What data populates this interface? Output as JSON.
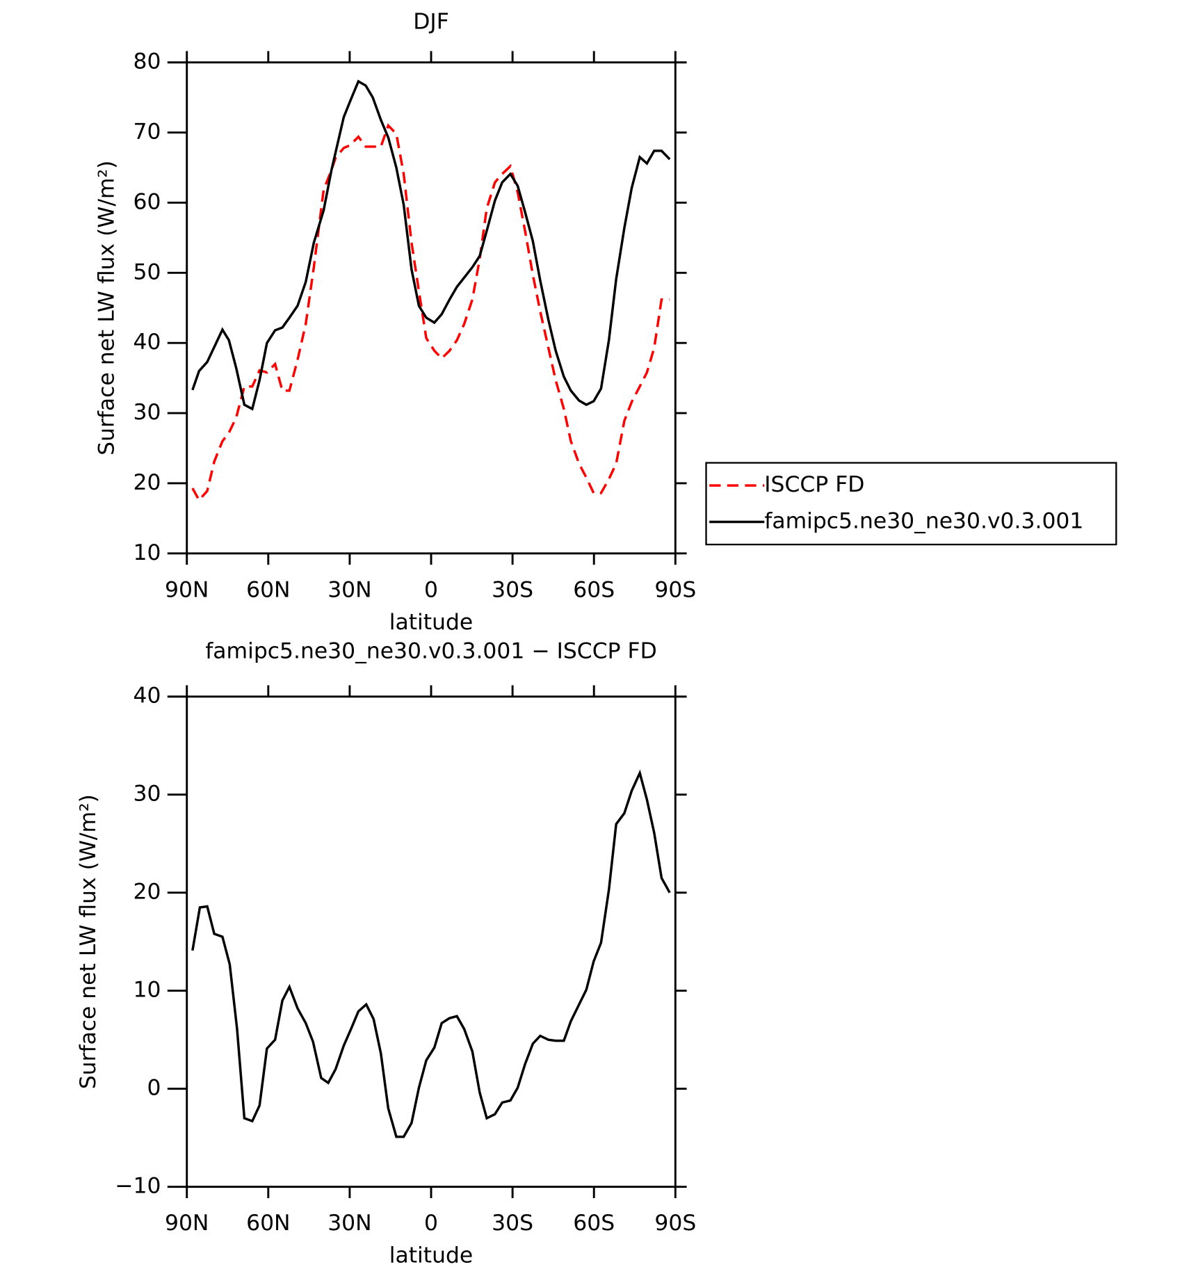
{
  "chart_data": [
    {
      "type": "line",
      "title": "DJF",
      "xlabel": "latitude",
      "ylabel": "Surface net LW flux (W/m²)",
      "xlim": [
        90,
        -90
      ],
      "xticks": [
        {
          "value": 90,
          "label": "90N"
        },
        {
          "value": 60,
          "label": "60N"
        },
        {
          "value": 30,
          "label": "30N"
        },
        0,
        {
          "value": -30,
          "label": "30S"
        },
        {
          "value": -60,
          "label": "60S"
        },
        {
          "value": -90,
          "label": "90S"
        }
      ],
      "ylim": [
        10,
        80
      ],
      "yticks": [
        10,
        20,
        30,
        40,
        50,
        60,
        70,
        80
      ],
      "legend": "right",
      "series": [
        {
          "name": "ISCCP FD",
          "color": "#ff0000",
          "line_style": "dashed",
          "x": [
            87.9,
            85.5,
            82.5,
            79.9,
            76.9,
            74.5,
            71.8,
            68.8,
            65.9,
            63.2,
            60.5,
            57.5,
            54.8,
            52.2,
            49.2,
            46.2,
            43.2,
            39.6,
            36.7,
            35.2,
            32.2,
            29.8,
            26.8,
            24.1,
            21.5,
            18.5,
            15.8,
            12.8,
            10.1,
            7.2,
            4.5,
            1.8,
            -1.2,
            -3.9,
            -6.8,
            -9.5,
            -12.2,
            -15.2,
            -17.9,
            -20.5,
            -23.5,
            -26.2,
            -29.2,
            -31.9,
            -34.6,
            -37.5,
            -40.2,
            -43.2,
            -45.9,
            -48.9,
            -51.5,
            -54.5,
            -57.2,
            -59.9,
            -62.6,
            -65.5,
            -68.2,
            -71.2,
            -73.9,
            -76.9,
            -79.5,
            -82.2,
            -84.9,
            -87.9
          ],
          "values": [
            19.3,
            17.6,
            18.9,
            23.1,
            26.0,
            27.2,
            29.4,
            33.8,
            33.8,
            36.1,
            35.8,
            37.0,
            33.2,
            33.2,
            37.6,
            42.7,
            50.8,
            61.8,
            64.7,
            66.4,
            67.8,
            68.2,
            69.4,
            68.0,
            68.0,
            68.0,
            71.0,
            69.8,
            64.1,
            54.3,
            47.4,
            40.7,
            38.9,
            37.8,
            38.9,
            40.4,
            42.7,
            46.2,
            52.0,
            59.2,
            62.9,
            64.1,
            65.2,
            61.5,
            56.0,
            49.7,
            44.5,
            39.3,
            34.7,
            30.6,
            26.0,
            22.8,
            20.8,
            18.6,
            18.6,
            20.6,
            22.8,
            28.9,
            31.6,
            33.8,
            35.8,
            39.3,
            46.2,
            46.2
          ]
        },
        {
          "name": "famipc5.ne30_ne30.v0.3.001",
          "color": "#000000",
          "line_style": "solid",
          "x": [
            87.9,
            85.5,
            82.5,
            76.9,
            74.5,
            71.8,
            68.8,
            65.9,
            63.2,
            60.5,
            57.5,
            54.8,
            52.2,
            49.2,
            46.2,
            43.2,
            39.6,
            36.7,
            32.2,
            29.8,
            26.8,
            24.1,
            21.5,
            18.5,
            15.8,
            12.8,
            10.1,
            7.2,
            4.5,
            1.8,
            -1.2,
            -3.9,
            -6.8,
            -9.5,
            -15.2,
            -17.9,
            -20.5,
            -23.5,
            -26.2,
            -29.2,
            -31.9,
            -34.6,
            -37.5,
            -40.2,
            -43.2,
            -45.9,
            -48.9,
            -51.5,
            -54.5,
            -57.2,
            -59.9,
            -62.6,
            -65.5,
            -68.2,
            -71.2,
            -73.9,
            -76.9,
            -79.5,
            -82.2,
            -84.9,
            -87.9
          ],
          "values": [
            33.3,
            36.0,
            37.3,
            41.9,
            40.4,
            36.4,
            31.2,
            30.6,
            34.7,
            40.0,
            41.8,
            42.2,
            43.6,
            45.3,
            48.7,
            54.3,
            58.9,
            64.7,
            72.2,
            74.5,
            77.3,
            76.7,
            75.0,
            71.8,
            69.3,
            65.0,
            59.7,
            50.5,
            45.3,
            43.6,
            42.9,
            44.1,
            46.2,
            48.0,
            50.8,
            52.4,
            56.0,
            60.3,
            62.9,
            64.1,
            62.4,
            58.7,
            54.5,
            48.9,
            43.3,
            38.9,
            35.2,
            33.2,
            31.8,
            31.2,
            31.7,
            33.5,
            40.4,
            49.1,
            56.4,
            62.1,
            66.5,
            65.6,
            67.4,
            67.4,
            66.2
          ]
        }
      ]
    },
    {
      "type": "line",
      "title": "famipc5.ne30_ne30.v0.3.001 − ISCCP FD",
      "xlabel": "latitude",
      "ylabel": "Surface net LW flux (W/m²)",
      "xlim": [
        90,
        -90
      ],
      "xticks": [
        {
          "value": 90,
          "label": "90N"
        },
        {
          "value": 60,
          "label": "60N"
        },
        {
          "value": 30,
          "label": "30N"
        },
        0,
        {
          "value": -30,
          "label": "30S"
        },
        {
          "value": -60,
          "label": "60S"
        },
        {
          "value": -90,
          "label": "90S"
        }
      ],
      "ylim": [
        -10,
        40
      ],
      "yticks": [
        {
          "value": -10,
          "label": "−10"
        },
        0,
        10,
        20,
        30,
        40
      ],
      "color": "#000000",
      "x": [
        87.9,
        85.2,
        82.5,
        79.9,
        76.9,
        74.2,
        71.5,
        68.8,
        65.9,
        63.2,
        60.5,
        57.5,
        54.8,
        52.2,
        49.2,
        46.2,
        43.5,
        40.5,
        37.9,
        35.2,
        32.2,
        29.5,
        26.8,
        23.9,
        21.2,
        18.5,
        15.8,
        12.8,
        10.1,
        7.2,
        4.5,
        1.8,
        -1.2,
        -3.9,
        -6.8,
        -9.5,
        -12.2,
        -15.2,
        -17.9,
        -20.5,
        -23.5,
        -26.2,
        -29.2,
        -31.9,
        -34.6,
        -37.5,
        -40.2,
        -43.2,
        -45.9,
        -48.9,
        -51.5,
        -54.5,
        -57.2,
        -59.9,
        -62.6,
        -65.5,
        -68.2,
        -71.2,
        -73.9,
        -76.9,
        -79.5,
        -82.2,
        -84.9,
        -87.9
      ],
      "values": [
        14.1,
        18.5,
        18.6,
        15.8,
        15.5,
        12.7,
        6.1,
        -3.0,
        -3.3,
        -1.7,
        4.1,
        5.0,
        9.0,
        10.4,
        8.2,
        6.7,
        4.8,
        1.1,
        0.6,
        2.0,
        4.4,
        6.1,
        7.9,
        8.6,
        7.1,
        3.6,
        -2.0,
        -4.9,
        -4.9,
        -3.5,
        0.1,
        2.9,
        4.2,
        6.7,
        7.2,
        7.4,
        6.1,
        3.8,
        -0.4,
        -3.0,
        -2.6,
        -1.4,
        -1.2,
        0.1,
        2.5,
        4.6,
        5.4,
        5.0,
        4.9,
        4.9,
        6.9,
        8.6,
        10.1,
        13.0,
        14.9,
        20.3,
        27.0,
        28.1,
        30.4,
        32.2,
        29.5,
        26.1,
        21.5,
        20.0
      ]
    }
  ]
}
